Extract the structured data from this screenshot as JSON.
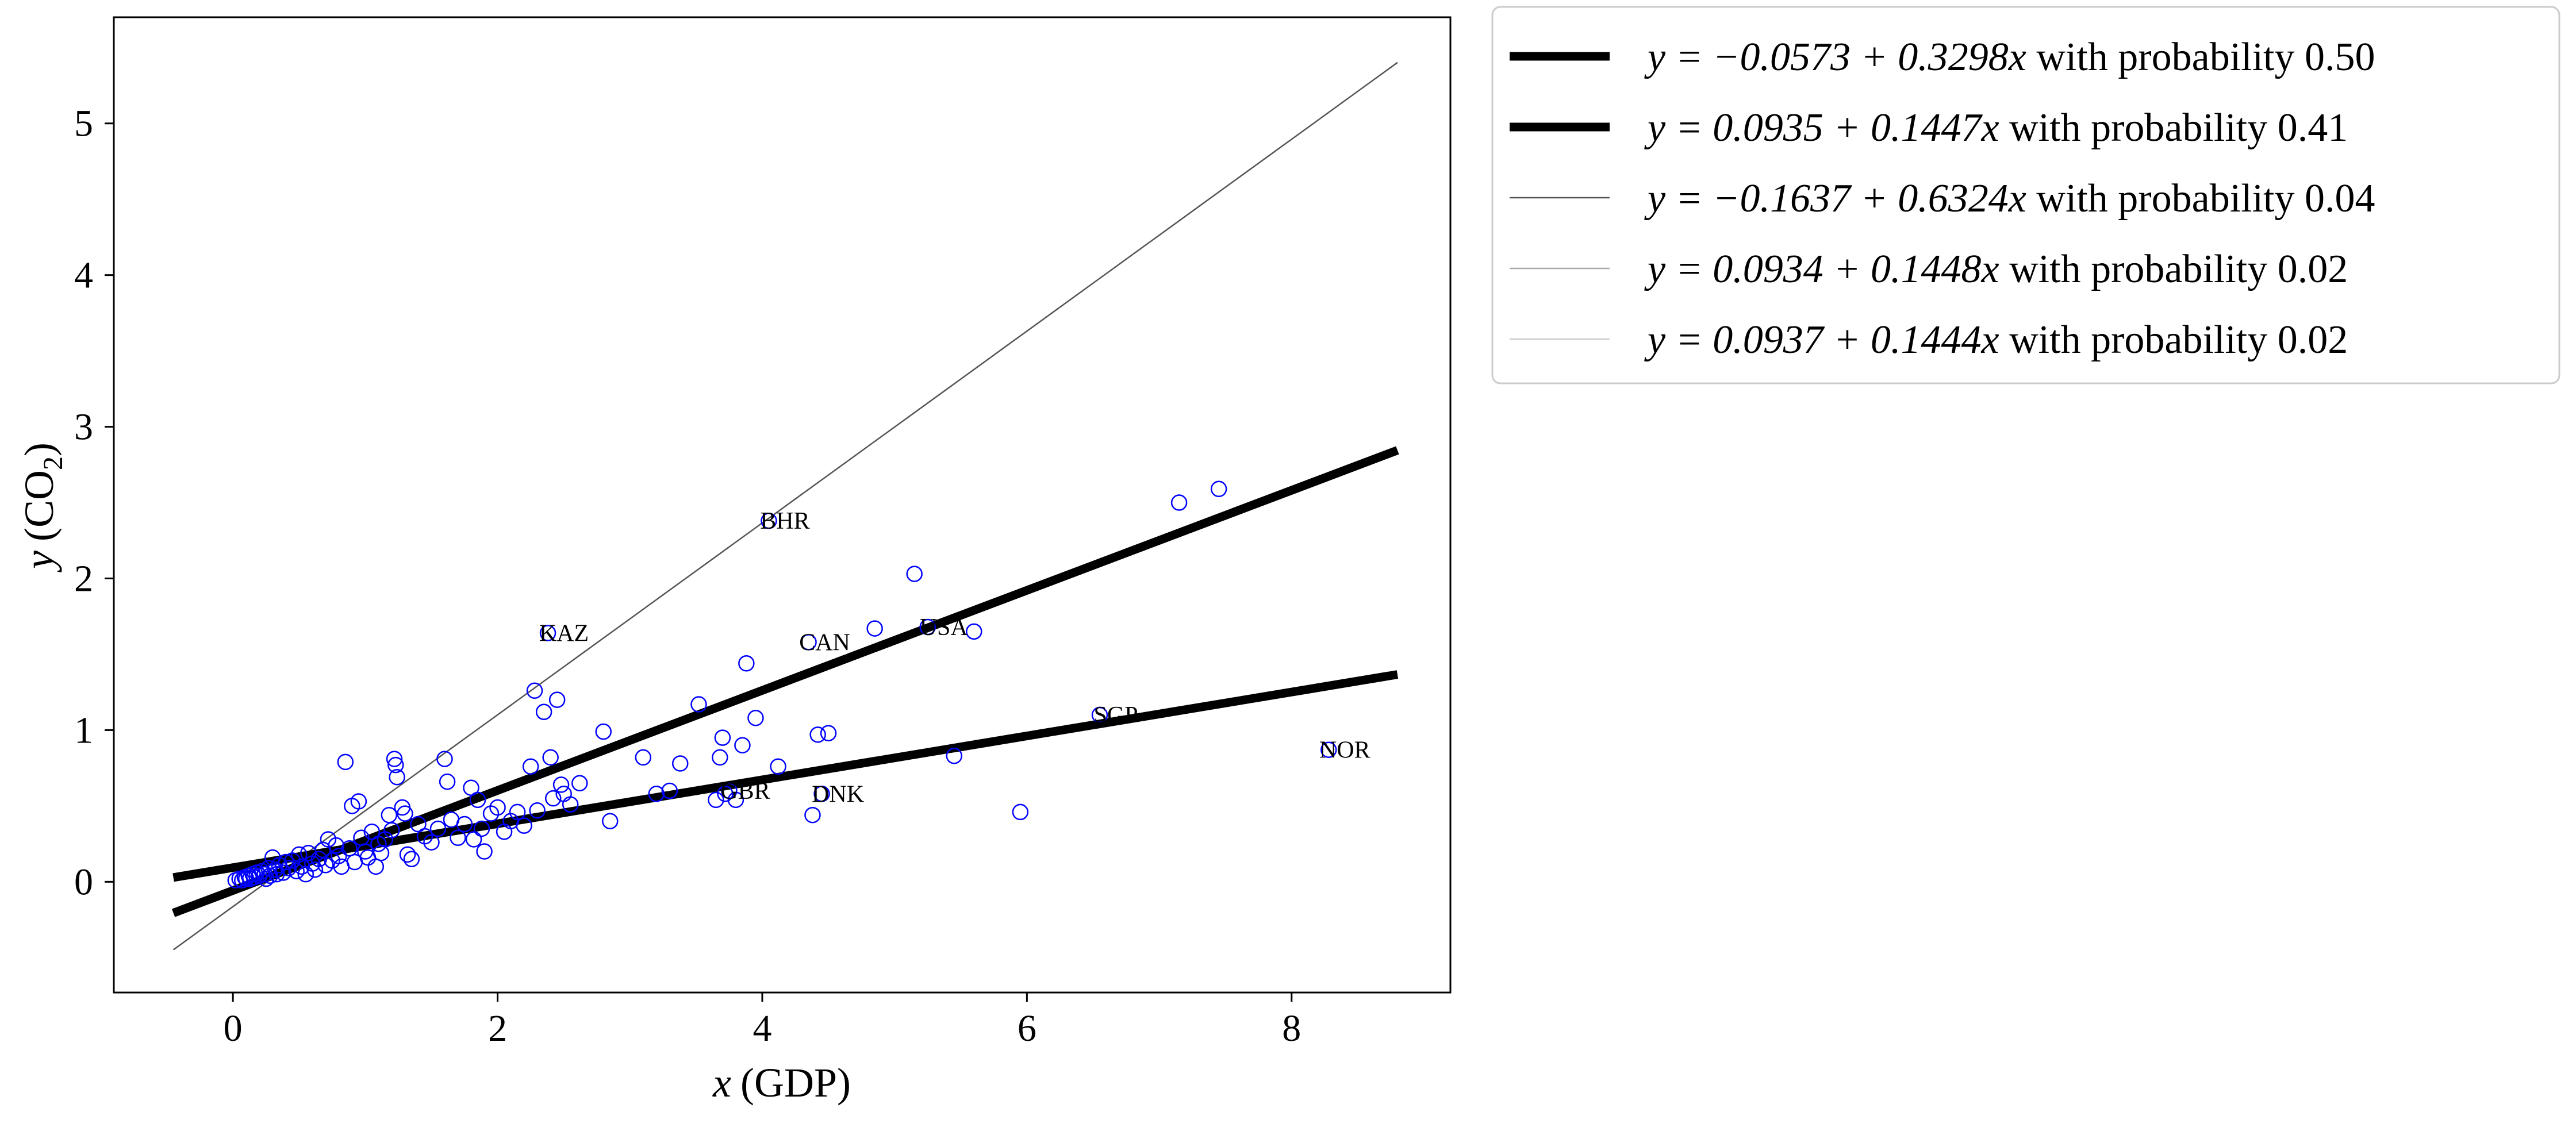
{
  "chart_data": {
    "type": "scatter",
    "xlabel_var": "x",
    "xlabel_unit": "(GDP)",
    "ylabel_var": "y",
    "ylabel_unit_prefix": "(CO",
    "ylabel_unit_sub": "2",
    "ylabel_unit_suffix": ")",
    "xlim": [
      -0.9,
      9.2
    ],
    "ylim": [
      -0.73,
      5.7
    ],
    "xticks": [
      0,
      2,
      4,
      6,
      8
    ],
    "yticks": [
      0,
      1,
      2,
      3,
      4,
      5
    ],
    "grid": false,
    "legend_position": "outside-top-right",
    "marker_color": "#0000ff",
    "regression_lines": [
      {
        "intercept": -0.0573,
        "slope": 0.3298,
        "probability": "0.50",
        "label": "y = −0.0573 + 0.3298x with probability 0.50",
        "line_width": "thick",
        "color": "#000000"
      },
      {
        "intercept": 0.0935,
        "slope": 0.1447,
        "probability": "0.41",
        "label": "y = 0.0935 + 0.1447x with probability 0.41",
        "line_width": "thick",
        "color": "#000000"
      },
      {
        "intercept": -0.1637,
        "slope": 0.6324,
        "probability": "0.04",
        "label": "y = −0.1637 + 0.6324x with probability 0.04",
        "line_width": "thin",
        "color": "#555555"
      },
      {
        "intercept": 0.0934,
        "slope": 0.1448,
        "probability": "0.02",
        "label": "y = 0.0934 + 0.1448x with probability 0.02",
        "line_width": "thin",
        "color": "#aaaaaa"
      },
      {
        "intercept": 0.0937,
        "slope": 0.1444,
        "probability": "0.02",
        "label": "y = 0.0937 + 0.1444x with probability 0.02",
        "line_width": "thin",
        "color": "#cccccc"
      }
    ],
    "line_x_range": [
      -0.45,
      8.8
    ],
    "legend_entries": [
      {
        "eq": "y = −0.0573 + 0.3298x",
        "suffix": " with probability 0.50"
      },
      {
        "eq": "y = 0.0935 + 0.1447x",
        "suffix": " with probability 0.41"
      },
      {
        "eq": "y = −0.1637 + 0.6324x",
        "suffix": " with probability 0.04"
      },
      {
        "eq": "y = 0.0934 + 0.1448x",
        "suffix": " with probability 0.02"
      },
      {
        "eq": "y = 0.0937 + 0.1444x",
        "suffix": " with probability 0.02"
      }
    ],
    "labeled_points": [
      {
        "label": "BHR",
        "x": 4.05,
        "y": 2.38
      },
      {
        "label": "KAZ",
        "x": 2.38,
        "y": 1.64
      },
      {
        "label": "CAN",
        "x": 4.35,
        "y": 1.58
      },
      {
        "label": "USA",
        "x": 5.25,
        "y": 1.68
      },
      {
        "label": "SGP",
        "x": 6.55,
        "y": 1.1
      },
      {
        "label": "NOR",
        "x": 8.28,
        "y": 0.87
      },
      {
        "label": "GBR",
        "x": 3.75,
        "y": 0.6
      },
      {
        "label": "DNK",
        "x": 4.45,
        "y": 0.58
      }
    ],
    "points": [
      [
        0.02,
        0.01
      ],
      [
        0.05,
        0.02
      ],
      [
        0.07,
        0.01
      ],
      [
        0.09,
        0.03
      ],
      [
        0.1,
        0.02
      ],
      [
        0.12,
        0.04
      ],
      [
        0.13,
        0.02
      ],
      [
        0.15,
        0.05
      ],
      [
        0.16,
        0.03
      ],
      [
        0.18,
        0.06
      ],
      [
        0.2,
        0.04
      ],
      [
        0.22,
        0.07
      ],
      [
        0.24,
        0.05
      ],
      [
        0.25,
        0.02
      ],
      [
        0.27,
        0.09
      ],
      [
        0.28,
        0.04
      ],
      [
        0.3,
        0.16
      ],
      [
        0.32,
        0.08
      ],
      [
        0.33,
        0.05
      ],
      [
        0.35,
        0.11
      ],
      [
        0.38,
        0.06
      ],
      [
        0.4,
        0.13
      ],
      [
        0.42,
        0.09
      ],
      [
        0.45,
        0.14
      ],
      [
        0.48,
        0.07
      ],
      [
        0.5,
        0.18
      ],
      [
        0.52,
        0.1
      ],
      [
        0.55,
        0.05
      ],
      [
        0.57,
        0.19
      ],
      [
        0.6,
        0.12
      ],
      [
        0.62,
        0.08
      ],
      [
        0.65,
        0.15
      ],
      [
        0.68,
        0.21
      ],
      [
        0.7,
        0.11
      ],
      [
        0.72,
        0.28
      ],
      [
        0.75,
        0.14
      ],
      [
        0.78,
        0.24
      ],
      [
        0.8,
        0.17
      ],
      [
        0.82,
        0.1
      ],
      [
        0.85,
        0.79
      ],
      [
        0.88,
        0.22
      ],
      [
        0.9,
        0.5
      ],
      [
        0.92,
        0.13
      ],
      [
        0.95,
        0.53
      ],
      [
        0.97,
        0.29
      ],
      [
        1.0,
        0.2
      ],
      [
        1.02,
        0.16
      ],
      [
        1.05,
        0.33
      ],
      [
        1.08,
        0.1
      ],
      [
        1.1,
        0.25
      ],
      [
        1.12,
        0.19
      ],
      [
        1.15,
        0.28
      ],
      [
        1.18,
        0.44
      ],
      [
        1.2,
        0.34
      ],
      [
        1.22,
        0.81
      ],
      [
        1.23,
        0.77
      ],
      [
        1.24,
        0.69
      ],
      [
        1.28,
        0.49
      ],
      [
        1.3,
        0.45
      ],
      [
        1.32,
        0.18
      ],
      [
        1.35,
        0.15
      ],
      [
        1.4,
        0.38
      ],
      [
        1.45,
        0.3
      ],
      [
        1.5,
        0.26
      ],
      [
        1.55,
        0.35
      ],
      [
        1.6,
        0.81
      ],
      [
        1.62,
        0.66
      ],
      [
        1.65,
        0.41
      ],
      [
        1.7,
        0.29
      ],
      [
        1.75,
        0.38
      ],
      [
        1.8,
        0.62
      ],
      [
        1.82,
        0.28
      ],
      [
        1.85,
        0.54
      ],
      [
        1.88,
        0.35
      ],
      [
        1.9,
        0.2
      ],
      [
        1.95,
        0.45
      ],
      [
        2.0,
        0.49
      ],
      [
        2.05,
        0.33
      ],
      [
        2.1,
        0.4
      ],
      [
        2.15,
        0.46
      ],
      [
        2.2,
        0.37
      ],
      [
        2.25,
        0.76
      ],
      [
        2.28,
        1.26
      ],
      [
        2.3,
        0.47
      ],
      [
        2.35,
        1.12
      ],
      [
        2.38,
        1.64
      ],
      [
        2.4,
        0.82
      ],
      [
        2.42,
        0.55
      ],
      [
        2.45,
        1.2
      ],
      [
        2.48,
        0.64
      ],
      [
        2.5,
        0.58
      ],
      [
        2.55,
        0.51
      ],
      [
        2.62,
        0.65
      ],
      [
        2.8,
        0.99
      ],
      [
        2.85,
        0.4
      ],
      [
        3.1,
        0.82
      ],
      [
        3.2,
        0.58
      ],
      [
        3.3,
        0.6
      ],
      [
        3.38,
        0.78
      ],
      [
        3.52,
        1.17
      ],
      [
        3.65,
        0.54
      ],
      [
        3.68,
        0.82
      ],
      [
        3.7,
        0.95
      ],
      [
        3.72,
        0.58
      ],
      [
        3.75,
        0.6
      ],
      [
        3.8,
        0.54
      ],
      [
        3.85,
        0.9
      ],
      [
        3.88,
        1.44
      ],
      [
        3.95,
        1.08
      ],
      [
        4.05,
        2.38
      ],
      [
        4.12,
        0.76
      ],
      [
        4.35,
        1.58
      ],
      [
        4.38,
        0.44
      ],
      [
        4.42,
        0.97
      ],
      [
        4.45,
        0.58
      ],
      [
        4.5,
        0.98
      ],
      [
        4.85,
        1.67
      ],
      [
        5.15,
        2.03
      ],
      [
        5.25,
        1.68
      ],
      [
        5.45,
        0.83
      ],
      [
        5.6,
        1.65
      ],
      [
        5.95,
        0.46
      ],
      [
        6.55,
        1.1
      ],
      [
        7.15,
        2.5
      ],
      [
        7.45,
        2.59
      ],
      [
        8.28,
        0.87
      ]
    ]
  }
}
